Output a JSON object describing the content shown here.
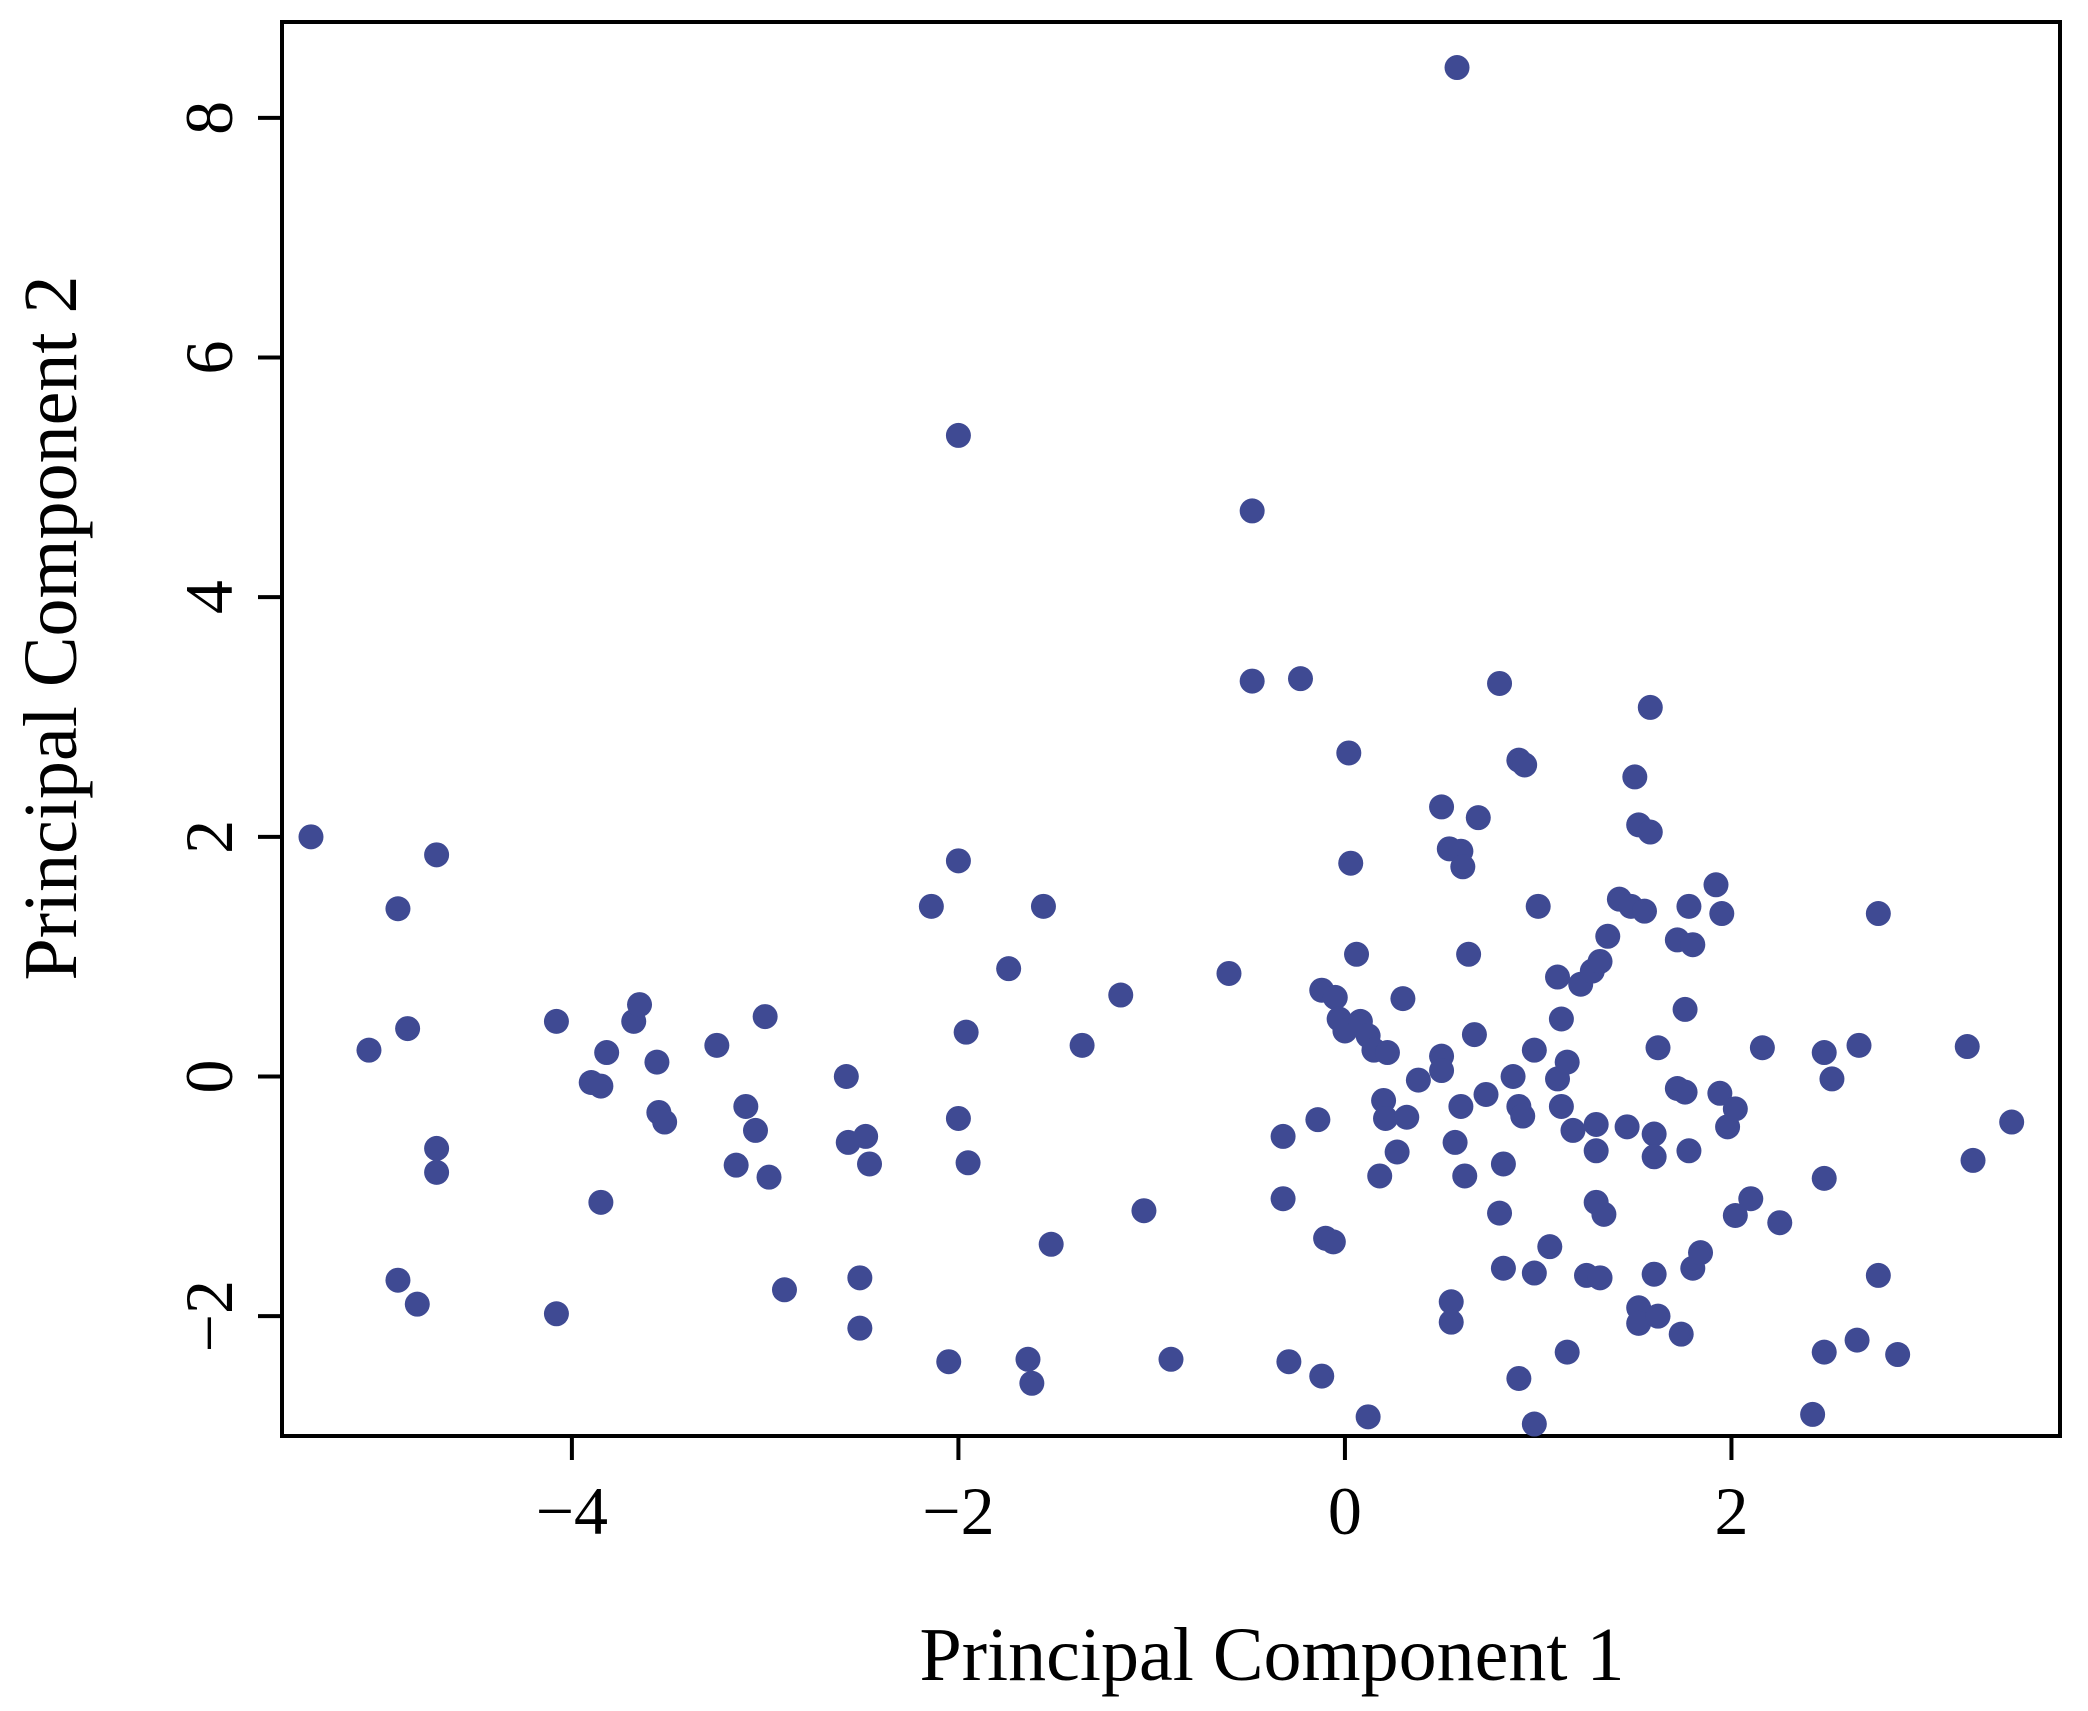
{
  "chart_data": {
    "type": "scatter",
    "title": "",
    "xlabel": "Principal Component 1",
    "ylabel": "Principal Component 2",
    "xlim": [
      -5.5,
      3.7
    ],
    "ylim": [
      -3.0,
      8.8
    ],
    "xticks": [
      -4,
      -2,
      0,
      2
    ],
    "yticks": [
      -2,
      0,
      2,
      4,
      6,
      8
    ],
    "xtick_labels": [
      "−4",
      "−2",
      "0",
      "2"
    ],
    "ytick_labels": [
      "−2",
      "0",
      "2",
      "4",
      "6",
      "8"
    ],
    "grid": false,
    "legend": "none",
    "marker_color": "#3f4a93",
    "series": [
      {
        "points": [
          [
            -5.35,
            2.0
          ],
          [
            -4.9,
            1.4
          ],
          [
            -4.7,
            1.85
          ],
          [
            -5.05,
            0.22
          ],
          [
            -4.85,
            0.4
          ],
          [
            -4.7,
            -0.6
          ],
          [
            -4.7,
            -0.8
          ],
          [
            -4.9,
            -1.7
          ],
          [
            -4.8,
            -1.9
          ],
          [
            -4.08,
            0.46
          ],
          [
            -4.08,
            -1.98
          ],
          [
            -3.9,
            -0.05
          ],
          [
            -3.85,
            -0.08
          ],
          [
            -3.82,
            0.2
          ],
          [
            -3.85,
            -1.05
          ],
          [
            -3.68,
            0.46
          ],
          [
            -3.65,
            0.6
          ],
          [
            -3.56,
            0.12
          ],
          [
            -3.55,
            -0.3
          ],
          [
            -3.52,
            -0.38
          ],
          [
            -3.25,
            0.26
          ],
          [
            -3.15,
            -0.74
          ],
          [
            -3.1,
            -0.25
          ],
          [
            -3.05,
            -0.45
          ],
          [
            -3.0,
            0.5
          ],
          [
            -2.98,
            -0.84
          ],
          [
            -2.9,
            -1.78
          ],
          [
            -2.58,
            0.0
          ],
          [
            -2.57,
            -0.55
          ],
          [
            -2.48,
            -0.5
          ],
          [
            -2.46,
            -0.73
          ],
          [
            -2.51,
            -1.68
          ],
          [
            -2.51,
            -2.1
          ],
          [
            -2.14,
            1.42
          ],
          [
            -2.0,
            1.8
          ],
          [
            -2.0,
            5.35
          ],
          [
            -2.0,
            -0.35
          ],
          [
            -1.96,
            0.37
          ],
          [
            -1.95,
            -0.72
          ],
          [
            -2.05,
            -2.38
          ],
          [
            -1.74,
            0.9
          ],
          [
            -1.64,
            -2.36
          ],
          [
            -1.62,
            -2.56
          ],
          [
            -1.56,
            1.42
          ],
          [
            -1.52,
            -1.4
          ],
          [
            -1.36,
            0.26
          ],
          [
            -1.16,
            0.68
          ],
          [
            -1.04,
            -1.12
          ],
          [
            -0.9,
            -2.36
          ],
          [
            -0.6,
            0.86
          ],
          [
            -0.48,
            4.72
          ],
          [
            -0.48,
            3.3
          ],
          [
            -0.23,
            3.32
          ],
          [
            -0.32,
            -0.5
          ],
          [
            -0.32,
            -1.02
          ],
          [
            -0.29,
            -2.38
          ],
          [
            -0.14,
            -0.36
          ],
          [
            -0.12,
            -2.5
          ],
          [
            -0.1,
            -1.35
          ],
          [
            -0.06,
            -1.38
          ],
          [
            -0.12,
            0.72
          ],
          [
            -0.05,
            0.66
          ],
          [
            -0.03,
            0.48
          ],
          [
            0.0,
            0.38
          ],
          [
            0.02,
            2.7
          ],
          [
            0.03,
            1.78
          ],
          [
            0.06,
            1.02
          ],
          [
            0.08,
            0.46
          ],
          [
            0.12,
            0.34
          ],
          [
            0.15,
            0.22
          ],
          [
            0.22,
            0.2
          ],
          [
            0.2,
            -0.2
          ],
          [
            0.21,
            -0.35
          ],
          [
            0.27,
            -0.63
          ],
          [
            0.18,
            -0.83
          ],
          [
            0.3,
            0.65
          ],
          [
            0.32,
            -0.34
          ],
          [
            0.12,
            -2.84
          ],
          [
            0.38,
            -0.03
          ],
          [
            0.5,
            2.25
          ],
          [
            0.5,
            0.17
          ],
          [
            0.5,
            0.05
          ],
          [
            0.54,
            1.9
          ],
          [
            0.6,
            1.88
          ],
          [
            0.61,
            1.75
          ],
          [
            0.64,
            1.02
          ],
          [
            0.67,
            0.35
          ],
          [
            0.6,
            -0.25
          ],
          [
            0.57,
            -0.55
          ],
          [
            0.62,
            -0.83
          ],
          [
            0.55,
            -1.88
          ],
          [
            0.55,
            -2.05
          ],
          [
            0.58,
            8.42
          ],
          [
            0.69,
            2.16
          ],
          [
            0.73,
            -0.15
          ],
          [
            0.8,
            3.28
          ],
          [
            0.82,
            -0.73
          ],
          [
            0.8,
            -1.14
          ],
          [
            0.82,
            -1.6
          ],
          [
            0.87,
            0.0
          ],
          [
            0.9,
            2.64
          ],
          [
            0.93,
            2.6
          ],
          [
            0.9,
            -0.25
          ],
          [
            0.92,
            -0.33
          ],
          [
            0.9,
            -2.52
          ],
          [
            0.98,
            0.22
          ],
          [
            0.98,
            -1.64
          ],
          [
            1.0,
            1.42
          ],
          [
            0.98,
            -2.9
          ],
          [
            1.06,
            -1.42
          ],
          [
            1.1,
            0.83
          ],
          [
            1.12,
            0.48
          ],
          [
            1.1,
            -0.02
          ],
          [
            1.12,
            -0.25
          ],
          [
            1.15,
            0.12
          ],
          [
            1.18,
            -0.45
          ],
          [
            1.15,
            -2.3
          ],
          [
            1.22,
            0.77
          ],
          [
            1.28,
            0.88
          ],
          [
            1.32,
            0.96
          ],
          [
            1.25,
            -1.66
          ],
          [
            1.3,
            -0.4
          ],
          [
            1.3,
            -0.62
          ],
          [
            1.3,
            -1.05
          ],
          [
            1.34,
            -1.15
          ],
          [
            1.32,
            -1.68
          ],
          [
            1.36,
            1.17
          ],
          [
            1.42,
            1.48
          ],
          [
            1.48,
            1.42
          ],
          [
            1.46,
            -0.42
          ],
          [
            1.5,
            2.5
          ],
          [
            1.52,
            2.1
          ],
          [
            1.55,
            1.38
          ],
          [
            1.58,
            2.04
          ],
          [
            1.6,
            -0.48
          ],
          [
            1.6,
            -0.67
          ],
          [
            1.6,
            -1.65
          ],
          [
            1.62,
            0.24
          ],
          [
            1.58,
            3.08
          ],
          [
            1.52,
            -1.93
          ],
          [
            1.52,
            -2.06
          ],
          [
            1.62,
            -2.0
          ],
          [
            1.72,
            1.14
          ],
          [
            1.72,
            -0.1
          ],
          [
            1.76,
            0.56
          ],
          [
            1.76,
            -0.13
          ],
          [
            1.78,
            -0.62
          ],
          [
            1.74,
            -2.15
          ],
          [
            1.78,
            1.42
          ],
          [
            1.8,
            1.1
          ],
          [
            1.8,
            -1.6
          ],
          [
            1.84,
            -1.47
          ],
          [
            1.92,
            1.6
          ],
          [
            1.95,
            1.36
          ],
          [
            1.94,
            -0.14
          ],
          [
            1.98,
            -0.42
          ],
          [
            2.02,
            -0.27
          ],
          [
            2.02,
            -1.16
          ],
          [
            2.1,
            -1.02
          ],
          [
            2.16,
            0.24
          ],
          [
            2.25,
            -1.22
          ],
          [
            2.42,
            -2.82
          ],
          [
            2.48,
            0.2
          ],
          [
            2.48,
            -0.85
          ],
          [
            2.52,
            -0.02
          ],
          [
            2.48,
            -2.3
          ],
          [
            2.66,
            0.26
          ],
          [
            2.65,
            -2.2
          ],
          [
            2.76,
            1.36
          ],
          [
            2.76,
            -1.66
          ],
          [
            2.86,
            -2.32
          ],
          [
            3.22,
            0.25
          ],
          [
            3.25,
            -0.7
          ],
          [
            3.45,
            -0.38
          ]
        ]
      }
    ]
  }
}
